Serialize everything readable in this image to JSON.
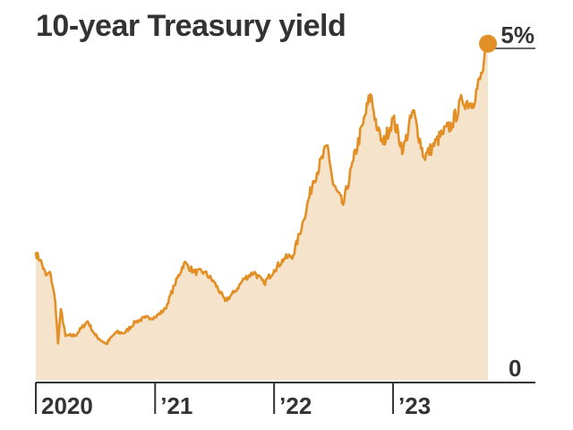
{
  "chart_data": {
    "type": "area",
    "title": "10-year Treasury yield",
    "xlabel": "",
    "ylabel": "",
    "ylim": [
      0,
      5
    ],
    "y_tick_labels": [
      "0",
      "5%"
    ],
    "x_tick_labels": [
      "2020",
      "’21",
      "’22",
      "’23"
    ],
    "x_ticks": [
      "2020-01-01",
      "2021-01-01",
      "2022-01-01",
      "2023-01-01"
    ],
    "x_range": [
      "2020-01-01",
      "2023-10-19"
    ],
    "grid": false,
    "legend": "none",
    "colors": {
      "line": "#E28F25",
      "fill": "#F6E3CC",
      "axis": "#333333",
      "text": "#333333"
    },
    "series": [
      {
        "x": [
          "2020-01-01",
          "2020-01-15",
          "2020-02-01",
          "2020-02-15",
          "2020-03-01",
          "2020-03-09",
          "2020-03-18",
          "2020-04-01",
          "2020-05-01",
          "2020-06-08",
          "2020-07-01",
          "2020-08-04",
          "2020-09-01",
          "2020-10-01",
          "2020-11-01",
          "2020-12-01",
          "2021-01-01",
          "2021-02-01",
          "2021-03-01",
          "2021-03-31",
          "2021-05-01",
          "2021-06-01",
          "2021-07-01",
          "2021-08-04",
          "2021-09-01",
          "2021-10-01",
          "2021-11-01",
          "2021-12-01",
          "2022-01-01",
          "2022-02-01",
          "2022-03-01",
          "2022-04-01",
          "2022-05-01",
          "2022-06-14",
          "2022-07-01",
          "2022-08-01",
          "2022-09-01",
          "2022-10-01",
          "2022-10-24",
          "2022-11-15",
          "2022-12-01",
          "2023-01-01",
          "2023-02-01",
          "2023-03-03",
          "2023-04-06",
          "2023-05-01",
          "2023-06-01",
          "2023-07-01",
          "2023-08-01",
          "2023-09-01",
          "2023-10-01",
          "2023-10-19"
        ],
        "values": [
          1.88,
          1.78,
          1.55,
          1.58,
          1.15,
          0.54,
          1.05,
          0.65,
          0.66,
          0.87,
          0.66,
          0.53,
          0.7,
          0.7,
          0.86,
          0.92,
          0.93,
          1.05,
          1.4,
          1.74,
          1.6,
          1.6,
          1.45,
          1.17,
          1.3,
          1.5,
          1.6,
          1.43,
          1.63,
          1.8,
          1.85,
          2.37,
          2.95,
          3.48,
          2.9,
          2.6,
          3.25,
          3.8,
          4.24,
          3.7,
          3.5,
          3.88,
          3.4,
          4.0,
          3.3,
          3.45,
          3.65,
          3.8,
          4.15,
          4.1,
          4.55,
          4.99
        ]
      }
    ]
  }
}
